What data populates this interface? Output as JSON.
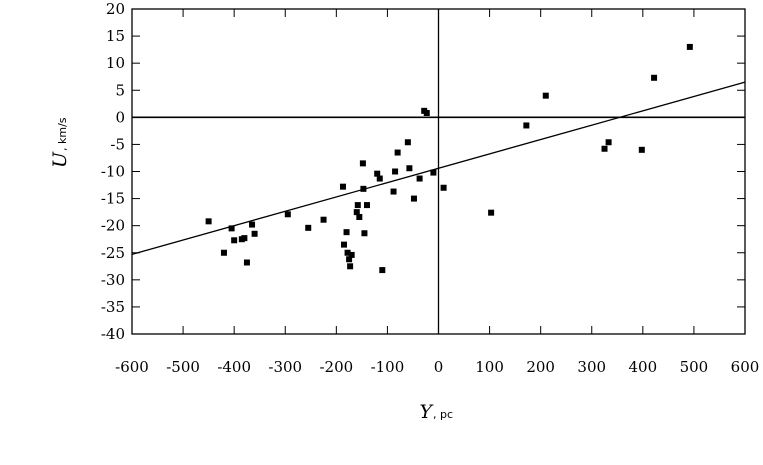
{
  "chart_data": {
    "type": "scatter",
    "xlabel": "Y",
    "xunit": ", pc",
    "ylabel": "U",
    "yunit": ", km/s",
    "xlim": [
      -600,
      600
    ],
    "ylim": [
      -40,
      20
    ],
    "xticks": [
      -600,
      -500,
      -400,
      -300,
      -200,
      -100,
      0,
      100,
      200,
      300,
      400,
      500,
      600
    ],
    "yticks": [
      20,
      15,
      10,
      5,
      0,
      -5,
      -10,
      -15,
      -20,
      -25,
      -30,
      -35,
      -40
    ],
    "zero_lines": true,
    "grid": false,
    "fit_line": {
      "x": [
        -600,
        600
      ],
      "y": [
        -25.3,
        6.5
      ]
    },
    "points": [
      [
        -450,
        -19.2
      ],
      [
        -420,
        -25
      ],
      [
        -405,
        -20.5
      ],
      [
        -400,
        -22.7
      ],
      [
        -385,
        -22.5
      ],
      [
        -380,
        -22.3
      ],
      [
        -375,
        -26.8
      ],
      [
        -365,
        -19.8
      ],
      [
        -360,
        -21.5
      ],
      [
        -295,
        -17.9
      ],
      [
        -255,
        -20.4
      ],
      [
        -225,
        -18.9
      ],
      [
        -187,
        -12.8
      ],
      [
        -185,
        -23.5
      ],
      [
        -180,
        -21.2
      ],
      [
        -178,
        -25
      ],
      [
        -175,
        -26.2
      ],
      [
        -173,
        -27.5
      ],
      [
        -170,
        -25.4
      ],
      [
        -160,
        -17.5
      ],
      [
        -158,
        -16.2
      ],
      [
        -155,
        -18.4
      ],
      [
        -148,
        -8.5
      ],
      [
        -147,
        -13.2
      ],
      [
        -145,
        -21.4
      ],
      [
        -140,
        -16.2
      ],
      [
        -120,
        -10.4
      ],
      [
        -115,
        -11.3
      ],
      [
        -110,
        -28.2
      ],
      [
        -88,
        -13.7
      ],
      [
        -85,
        -10
      ],
      [
        -80,
        -6.5
      ],
      [
        -60,
        -4.6
      ],
      [
        -57,
        -9.4
      ],
      [
        -48,
        -15
      ],
      [
        -37,
        -11.3
      ],
      [
        -28,
        1.2
      ],
      [
        -23,
        0.8
      ],
      [
        -10,
        -10.2
      ],
      [
        10,
        -13
      ],
      [
        103,
        -17.6
      ],
      [
        172,
        -1.5
      ],
      [
        210,
        4
      ],
      [
        325,
        -5.8
      ],
      [
        333,
        -4.6
      ],
      [
        398,
        -6
      ],
      [
        422,
        7.3
      ],
      [
        492,
        13
      ]
    ]
  }
}
